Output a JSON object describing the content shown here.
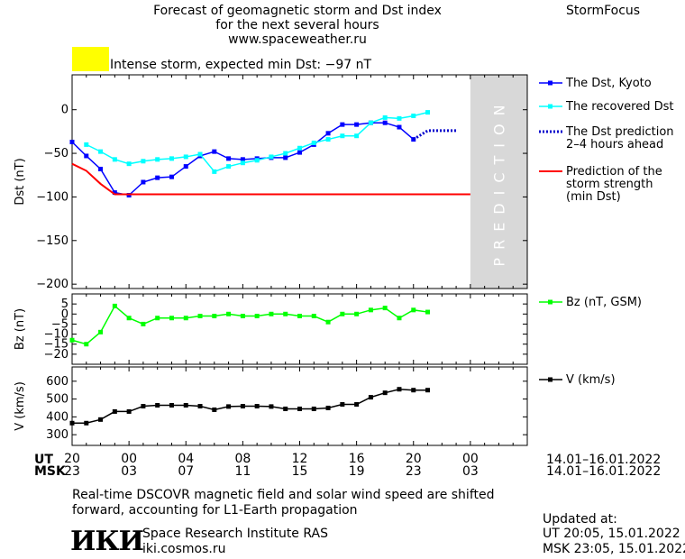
{
  "header": {
    "title_line1": "Forecast of geomagnetic storm and Dst index",
    "title_line2": "for the next several hours",
    "website": "www.spaceweather.ru",
    "app_name": "StormFocus"
  },
  "storm_status": {
    "text": "Intense storm, expected min Dst: −97 nT",
    "color": "#ffff00"
  },
  "colors": {
    "dst_kyoto": "#0000ff",
    "dst_recovered": "#00ffff",
    "dst_prediction": "#0000cc",
    "storm_strength": "#ff0000",
    "bz": "#00ff00",
    "v": "#000000",
    "prediction_band": "#d8d8d8"
  },
  "chart_data": [
    {
      "type": "line",
      "panel": "dst",
      "ylabel": "Dst (nT)",
      "ylim": [
        -205,
        40
      ],
      "yticks": [
        0,
        -50,
        -100,
        -150,
        -200
      ],
      "xlim": [
        -4,
        28
      ],
      "band_label": "PREDICTION",
      "band_range": [
        24,
        28
      ],
      "series": [
        {
          "name": "The Dst, Kyoto",
          "x": [
            -4,
            -3,
            -2,
            -1,
            0,
            1,
            2,
            3,
            4,
            5,
            6,
            7,
            8,
            9,
            10,
            11,
            12,
            13,
            14,
            15,
            16,
            17,
            18,
            19,
            20
          ],
          "values": [
            -37,
            -53,
            -68,
            -95,
            -98,
            -83,
            -78,
            -77,
            -65,
            -53,
            -48,
            -56,
            -57,
            -56,
            -55,
            -55,
            -49,
            -40,
            -27,
            -17,
            -17,
            -15,
            -15,
            -20,
            -34
          ]
        },
        {
          "name": "The recovered Dst",
          "x": [
            -3,
            -2,
            -1,
            0,
            1,
            2,
            3,
            4,
            5,
            6,
            7,
            8,
            9,
            10,
            11,
            12,
            13,
            14,
            15,
            16,
            17,
            18,
            19,
            20,
            21
          ],
          "values": [
            -40,
            -48,
            -57,
            -62,
            -59,
            -57,
            -56,
            -54,
            -51,
            -71,
            -65,
            -61,
            -58,
            -54,
            -50,
            -44,
            -38,
            -34,
            -30,
            -30,
            -15,
            -9,
            -10,
            -7,
            -3
          ]
        },
        {
          "name": "The Dst prediction 2–4 hours ahead",
          "x": [
            20,
            21,
            22,
            23
          ],
          "values": [
            -34,
            -24,
            -24,
            -24
          ]
        },
        {
          "name": "Prediction of the storm strength (min Dst)",
          "x": [
            -4,
            -3,
            -2,
            -1,
            0,
            1,
            24
          ],
          "values": [
            -62,
            -70,
            -85,
            -97,
            -97,
            -97,
            -97
          ]
        }
      ],
      "legend": [
        [
          "The Dst, Kyoto"
        ],
        [
          "The recovered Dst"
        ],
        [
          "The Dst prediction",
          "2–4 hours ahead"
        ],
        [
          "Prediction of the",
          "storm strength",
          "(min Dst)"
        ]
      ]
    },
    {
      "type": "line",
      "panel": "bz",
      "ylabel": "Bz (nT)",
      "ylim": [
        -25,
        10
      ],
      "yticks": [
        5,
        0,
        -5,
        -10,
        -15,
        -20
      ],
      "xlim": [
        -4,
        28
      ],
      "series": [
        {
          "name": "Bz (nT, GSM)",
          "x": [
            -4,
            -3,
            -2,
            -1,
            0,
            1,
            2,
            3,
            4,
            5,
            6,
            7,
            8,
            9,
            10,
            11,
            12,
            13,
            14,
            15,
            16,
            17,
            18,
            19,
            20,
            21
          ],
          "values": [
            -13,
            -15,
            -9,
            4,
            -2,
            -5,
            -2,
            -2,
            -2,
            -1,
            -1,
            0,
            -1,
            -1,
            0,
            0,
            -1,
            -1,
            -4,
            0,
            0,
            2,
            3,
            -2,
            2,
            1
          ]
        }
      ]
    },
    {
      "type": "line",
      "panel": "v",
      "ylabel": "V (km/s)",
      "ylim": [
        240,
        680
      ],
      "yticks": [
        300,
        400,
        500,
        600
      ],
      "xlim": [
        -4,
        28
      ],
      "series": [
        {
          "name": "V (km/s)",
          "x": [
            -4,
            -3,
            -2,
            -1,
            0,
            1,
            2,
            3,
            4,
            5,
            6,
            7,
            8,
            9,
            10,
            11,
            12,
            13,
            14,
            15,
            16,
            17,
            18,
            19,
            20,
            21
          ],
          "values": [
            365,
            365,
            385,
            430,
            430,
            460,
            465,
            465,
            465,
            460,
            440,
            458,
            460,
            460,
            458,
            445,
            445,
            445,
            450,
            470,
            470,
            510,
            535,
            555,
            550,
            550
          ]
        }
      ]
    }
  ],
  "time_axis": {
    "ut_label": "UT",
    "msk_label": "MSK",
    "ut_ticks": [
      "20",
      "00",
      "04",
      "08",
      "12",
      "16",
      "20",
      "00"
    ],
    "msk_ticks": [
      "23",
      "03",
      "07",
      "11",
      "15",
      "19",
      "23",
      "03"
    ],
    "ut_range": "14.01–16.01.2022",
    "msk_range": "14.01–16.01.2022"
  },
  "footer": {
    "note_line1": "Real-time DSCOVR magnetic field and solar wind speed are shifted",
    "note_line2": "forward, accounting for L1-Earth propagation",
    "logo_text": "ИКИ",
    "institute": "Space Research Institute RAS",
    "institute_site": "iki.cosmos.ru",
    "updated_label": "Updated at:",
    "updated_ut": "UT   20:05, 15.01.2022",
    "updated_msk": "MSK 23:05, 15.01.2022"
  }
}
